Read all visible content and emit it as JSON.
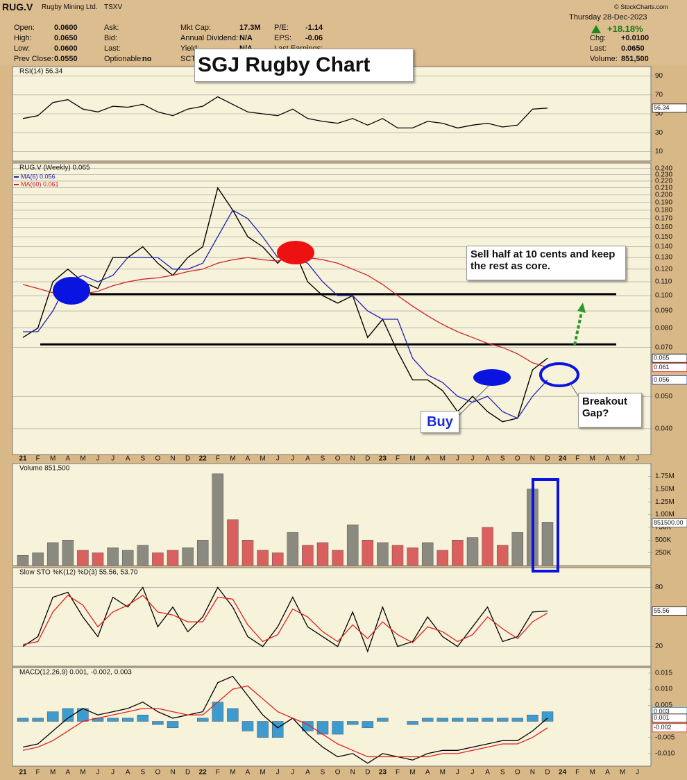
{
  "header": {
    "symbol": "RUG.V",
    "company": "Rugby Mining Ltd.",
    "exchange": "TSXV",
    "date": "Thursday  28-Dec-2023",
    "watermark": "© StockCharts.com",
    "left": [
      [
        "Open:",
        "0.0600"
      ],
      [
        "High:",
        "0.0650"
      ],
      [
        "Low:",
        "0.0600"
      ],
      [
        "Prev Close:",
        "0.0550"
      ]
    ],
    "mid": [
      [
        "Ask:",
        ""
      ],
      [
        "Bid:",
        ""
      ],
      [
        "Last:",
        ""
      ],
      [
        "Optionable:",
        "no"
      ]
    ],
    "stats": [
      [
        "Mkt Cap:",
        "17.3M"
      ],
      [
        "Annual Dividend:",
        "N/A"
      ],
      [
        "Yield:",
        "N/A"
      ],
      [
        "SCT",
        ""
      ]
    ],
    "ratios": [
      [
        "P/E:",
        "-1.14"
      ],
      [
        "EPS:",
        "-0.06"
      ],
      [
        "Last Earnings:",
        ""
      ]
    ],
    "right": [
      [
        "Chg:",
        "+0.0100"
      ],
      [
        "Last:",
        "0.0650"
      ],
      [
        "Volume:",
        "851,500"
      ]
    ],
    "change_pct": "+18.18%"
  },
  "chart_data": [
    {
      "type": "line",
      "title": "RSI(14) 56.34",
      "ylim": [
        0,
        100
      ],
      "yticks": [
        10,
        30,
        50,
        70,
        90
      ],
      "grid": true,
      "series": [
        {
          "color": "#000000",
          "tag": "56.34",
          "values": [
            45,
            48,
            62,
            65,
            55,
            52,
            58,
            57,
            60,
            52,
            48,
            55,
            58,
            68,
            60,
            52,
            50,
            48,
            55,
            45,
            42,
            40,
            45,
            38,
            45,
            35,
            35,
            42,
            40,
            35,
            38,
            40,
            36,
            38,
            55,
            56,
            null,
            null,
            null,
            null,
            null,
            null
          ]
        }
      ]
    },
    {
      "type": "line",
      "title": "RUG.V (Weekly) 0.065",
      "log": true,
      "ylim": [
        0.0335,
        0.249
      ],
      "categories": [
        "21",
        "F",
        "M",
        "A",
        "M",
        "J",
        "J",
        "A",
        "S",
        "O",
        "N",
        "D",
        "22",
        "F",
        "M",
        "A",
        "M",
        "J",
        "J",
        "A",
        "S",
        "O",
        "N",
        "D",
        "23",
        "F",
        "M",
        "A",
        "M",
        "J",
        "J",
        "A",
        "S",
        "O",
        "N",
        "D",
        "24",
        "F",
        "M",
        "A",
        "M",
        "J"
      ],
      "yticks": [
        {
          "value": 0.04,
          "label": "0.040"
        },
        {
          "value": 0.05,
          "label": "0.050"
        },
        {
          "value": 0.07,
          "label": "0.070"
        },
        {
          "value": 0.08,
          "label": "0.080"
        },
        {
          "value": 0.09,
          "label": "0.090"
        },
        {
          "value": 0.1,
          "label": "0.100"
        },
        {
          "value": 0.11,
          "label": "0.110"
        },
        {
          "value": 0.12,
          "label": "0.120"
        },
        {
          "value": 0.13,
          "label": "0.130"
        },
        {
          "value": 0.14,
          "label": "0.140"
        },
        {
          "value": 0.15,
          "label": "0.150"
        },
        {
          "value": 0.16,
          "label": "0.160"
        },
        {
          "value": 0.17,
          "label": "0.170"
        },
        {
          "value": 0.18,
          "label": "0.180"
        },
        {
          "value": 0.19,
          "label": "0.190"
        },
        {
          "value": 0.2,
          "label": "0.200"
        },
        {
          "value": 0.21,
          "label": "0.210"
        },
        {
          "value": 0.22,
          "label": "0.220"
        },
        {
          "value": 0.23,
          "label": "0.230"
        },
        {
          "value": 0.24,
          "label": "0.240"
        }
      ],
      "grid": true,
      "hlines": [
        0.101,
        0.0715
      ],
      "annotations": [
        "SGJ Rugby Chart",
        "Sell half at 10 cents and keep the rest as core.",
        "Buy",
        "Breakout Gap?"
      ],
      "series": [
        {
          "color": "#000000",
          "tag": "0.065",
          "values": [
            0.075,
            0.08,
            0.11,
            0.12,
            0.11,
            0.105,
            0.13,
            0.13,
            0.14,
            0.125,
            0.115,
            0.13,
            0.14,
            0.21,
            0.18,
            0.15,
            0.14,
            0.125,
            0.14,
            0.11,
            0.1,
            0.095,
            0.1,
            0.075,
            0.085,
            0.068,
            0.056,
            0.056,
            0.052,
            0.045,
            0.05,
            0.045,
            0.042,
            0.043,
            0.06,
            0.065,
            null,
            null,
            null,
            null,
            null,
            null
          ]
        },
        {
          "name": "MA(6) 0.056",
          "color": "#1f1fb4",
          "tag": "0.056",
          "values": [
            0.078,
            0.078,
            0.09,
            0.11,
            0.115,
            0.11,
            0.115,
            0.13,
            0.13,
            0.13,
            0.12,
            0.12,
            0.125,
            0.15,
            0.18,
            0.17,
            0.15,
            0.13,
            0.13,
            0.125,
            0.11,
            0.1,
            0.1,
            0.09,
            0.085,
            0.085,
            0.065,
            0.058,
            0.055,
            0.05,
            0.048,
            0.05,
            0.045,
            0.043,
            0.05,
            0.056,
            null,
            null,
            null,
            null,
            null,
            null
          ]
        },
        {
          "name": "MA(60) 0.061",
          "color": "#d0202a",
          "tag": "0.061",
          "values": [
            0.108,
            0.105,
            0.102,
            0.1,
            0.101,
            0.103,
            0.107,
            0.11,
            0.112,
            0.113,
            0.115,
            0.118,
            0.12,
            0.125,
            0.128,
            0.13,
            0.128,
            0.127,
            0.13,
            0.13,
            0.128,
            0.125,
            0.12,
            0.115,
            0.108,
            0.1,
            0.093,
            0.087,
            0.082,
            0.078,
            0.075,
            0.072,
            0.07,
            0.067,
            0.063,
            0.061,
            null,
            null,
            null,
            null,
            null,
            null
          ]
        }
      ]
    },
    {
      "type": "bar",
      "title": "Volume 851,500",
      "ylim": [
        0,
        2000000
      ],
      "up_color": "#8a8a80",
      "down_color": "#d9605f",
      "yticks": [
        {
          "value": 250000,
          "label": "250K"
        },
        {
          "value": 500000,
          "label": "500K"
        },
        {
          "value": 750000,
          "label": "750K"
        },
        {
          "value": 1000000,
          "label": "1.00M"
        },
        {
          "value": 1250000,
          "label": "1.25M"
        },
        {
          "value": 1500000,
          "label": "1.50M"
        },
        {
          "value": 1750000,
          "label": "1.75M"
        }
      ],
      "grid": false,
      "series": [
        {
          "tag": "851500.00",
          "values": [
            200000,
            250000,
            450000,
            500000,
            300000,
            250000,
            350000,
            300000,
            400000,
            250000,
            300000,
            350000,
            500000,
            1800000,
            900000,
            500000,
            300000,
            250000,
            650000,
            400000,
            450000,
            300000,
            800000,
            500000,
            450000,
            400000,
            350000,
            450000,
            300000,
            500000,
            550000,
            750000,
            400000,
            650000,
            1500000,
            851500,
            null,
            null,
            null,
            null,
            null,
            null
          ]
        }
      ]
    },
    {
      "type": "line",
      "title": "Slow STO %K(12) %D(3) 55.56, 53.70",
      "ylim": [
        0,
        100
      ],
      "yticks": [
        20,
        80
      ],
      "grid": true,
      "series": [
        {
          "color": "#000000",
          "tag": "55.56",
          "values": [
            20,
            30,
            70,
            75,
            50,
            30,
            70,
            60,
            80,
            40,
            60,
            35,
            50,
            80,
            60,
            30,
            20,
            40,
            70,
            40,
            30,
            20,
            55,
            15,
            60,
            20,
            25,
            50,
            30,
            20,
            40,
            60,
            25,
            30,
            55,
            56,
            null,
            null,
            null,
            null,
            null,
            null
          ]
        },
        {
          "color": "#e02020",
          "values": [
            22,
            25,
            55,
            72,
            62,
            40,
            55,
            62,
            72,
            55,
            52,
            45,
            45,
            70,
            68,
            42,
            25,
            32,
            58,
            50,
            35,
            25,
            42,
            28,
            45,
            32,
            24,
            40,
            35,
            25,
            32,
            50,
            38,
            28,
            45,
            54,
            null,
            null,
            null,
            null,
            null,
            null
          ]
        }
      ]
    },
    {
      "type": "line",
      "title": "MACD(12,26,9) 0.001, -0.002, 0.003",
      "ylim": [
        -0.0139,
        0.0167
      ],
      "yticks": [
        {
          "value": -0.01,
          "label": "-0.010"
        },
        {
          "value": -0.005,
          "label": "-0.005"
        },
        {
          "value": 0.005,
          "label": "0.005"
        },
        {
          "value": 0.01,
          "label": "0.010"
        },
        {
          "value": 0.015,
          "label": "0.015"
        }
      ],
      "grid": false,
      "series": [
        {
          "style": "bar",
          "color": "#3d9bd0",
          "tag": "0.003",
          "values": [
            0.001,
            0.001,
            0.003,
            0.004,
            0.004,
            0.001,
            0.001,
            0.001,
            0.002,
            -0.001,
            -0.002,
            0,
            0.001,
            0.006,
            0.004,
            -0.003,
            -0.005,
            -0.005,
            0,
            -0.003,
            -0.004,
            -0.004,
            -0.001,
            -0.002,
            0.001,
            0,
            -0.001,
            0.001,
            0.001,
            0.001,
            0.001,
            0.001,
            0.001,
            0.001,
            0.002,
            0.003,
            null,
            null,
            null,
            null,
            null,
            null
          ]
        },
        {
          "color": "#000000",
          "tag": "0.001",
          "values": [
            -0.008,
            -0.007,
            -0.003,
            0.001,
            0.004,
            0.002,
            0.003,
            0.004,
            0.006,
            0.003,
            0.001,
            0.002,
            0.003,
            0.012,
            0.014,
            0.008,
            0.002,
            -0.002,
            0.001,
            -0.004,
            -0.008,
            -0.011,
            -0.01,
            -0.013,
            -0.01,
            -0.011,
            -0.012,
            -0.01,
            -0.009,
            -0.009,
            -0.008,
            -0.007,
            -0.006,
            -0.006,
            -0.003,
            0.001,
            null,
            null,
            null,
            null,
            null,
            null
          ]
        },
        {
          "color": "#e02020",
          "tag": "-0.002",
          "values": [
            -0.009,
            -0.008,
            -0.006,
            -0.003,
            0,
            0.001,
            0.002,
            0.003,
            0.004,
            0.004,
            0.003,
            0.002,
            0.002,
            0.006,
            0.01,
            0.011,
            0.007,
            0.003,
            0.001,
            -0.001,
            -0.004,
            -0.007,
            -0.009,
            -0.011,
            -0.011,
            -0.011,
            -0.011,
            -0.011,
            -0.01,
            -0.01,
            -0.009,
            -0.008,
            -0.007,
            -0.007,
            -0.005,
            -0.002,
            null,
            null,
            null,
            null,
            null,
            null
          ]
        }
      ]
    }
  ]
}
